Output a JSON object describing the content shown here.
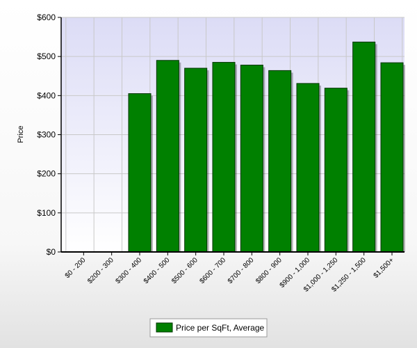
{
  "chart_data": {
    "type": "bar",
    "categories": [
      "$0 - 200",
      "$200 - 300",
      "$300 - 400",
      "$400 - 500",
      "$500 - 600",
      "$600 - 700",
      "$700 - 800",
      "$800 - 900",
      "$900 - 1,000",
      "$1,000 - 1,250",
      "$1,250 - 1,500",
      "$1,500+"
    ],
    "series": [
      {
        "name": "Price per SqFt, Average",
        "values": [
          null,
          null,
          405,
          490,
          470,
          485,
          478,
          464,
          431,
          419,
          537,
          484
        ],
        "color": "#008000"
      }
    ],
    "y_ticks": [
      "$0",
      "$100",
      "$200",
      "$300",
      "$400",
      "$500",
      "$600"
    ],
    "ylabel": "Price",
    "xlabel": "",
    "title": "",
    "ylim": [
      0,
      600
    ],
    "grid": true,
    "legend_position": "bottom-center",
    "colors": {
      "plot_background_top": "#dcdcf6",
      "plot_background_bottom": "#ffffff",
      "grid": "#c8c8c8",
      "bar_stroke": "#003300"
    }
  }
}
